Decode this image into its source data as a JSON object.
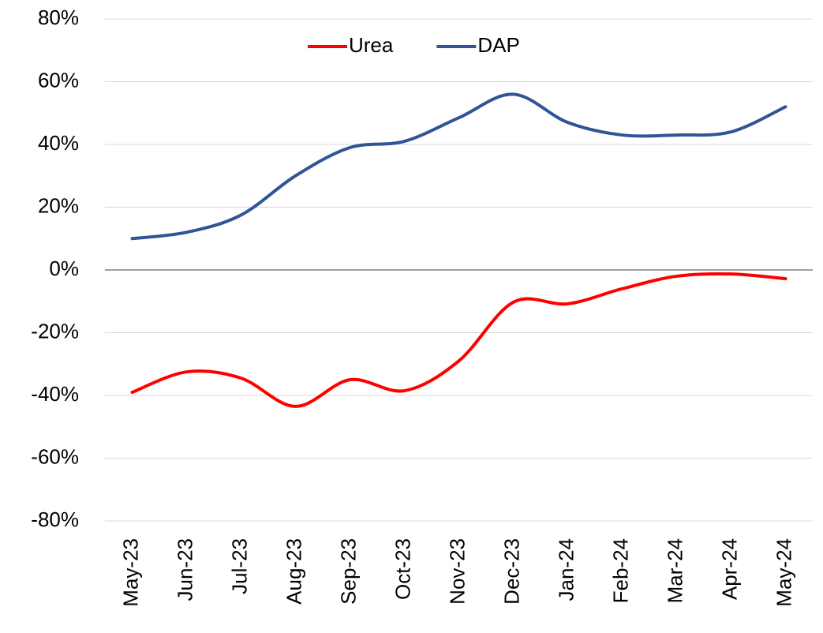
{
  "chart_data": {
    "type": "line",
    "categories": [
      "May-23",
      "Jun-23",
      "Jul-23",
      "Aug-23",
      "Sep-23",
      "Oct-23",
      "Nov-23",
      "Dec-23",
      "Jan-24",
      "Feb-24",
      "Mar-24",
      "Apr-24",
      "May-24"
    ],
    "series": [
      {
        "name": "Urea",
        "color": "#ff0000",
        "values": [
          -39,
          -32.5,
          -34.5,
          -43.5,
          -35,
          -38.5,
          -29,
          -10.3,
          -10.8,
          -6,
          -2,
          -1.3,
          -2.8
        ]
      },
      {
        "name": "DAP",
        "color": "#2f5597",
        "values": [
          10,
          12,
          17.5,
          30,
          39,
          41,
          48.5,
          56,
          47,
          43,
          43,
          44,
          52
        ]
      }
    ],
    "ylim": [
      -80,
      80
    ],
    "yticks": [
      {
        "value": -80,
        "label": "-80%"
      },
      {
        "value": -60,
        "label": "-60%"
      },
      {
        "value": -40,
        "label": "-40%"
      },
      {
        "value": -20,
        "label": "-20%"
      },
      {
        "value": 0,
        "label": "0%"
      },
      {
        "value": 20,
        "label": "20%"
      },
      {
        "value": 40,
        "label": "40%"
      },
      {
        "value": 60,
        "label": "60%"
      },
      {
        "value": 80,
        "label": "80%"
      }
    ],
    "grid": true,
    "smooth": true,
    "legend": "top"
  }
}
